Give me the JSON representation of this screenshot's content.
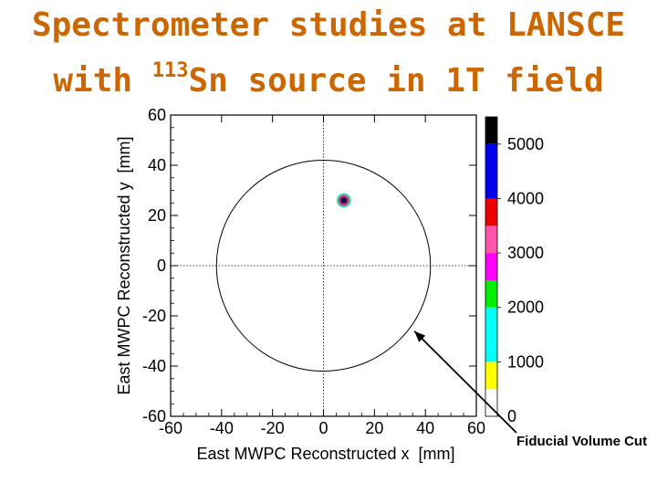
{
  "title": {
    "line1": "Spectrometer studies at LANSCE",
    "line2_prefix": "with ",
    "line2_superscript": "113",
    "line2_suffix": "Sn source in 1T field"
  },
  "chart_data": {
    "type": "heatmap",
    "title": "",
    "xlabel": "East MWPC Reconstructed x  [mm]",
    "ylabel": "East MWPC Reconstructed y  [mm]",
    "xlim": [
      -60,
      60
    ],
    "ylim": [
      -60,
      60
    ],
    "x_ticks": [
      -60,
      -40,
      -20,
      0,
      20,
      40,
      60
    ],
    "y_ticks": [
      -60,
      -40,
      -20,
      0,
      20,
      40,
      60
    ],
    "x_tick_labels": [
      "-60",
      "-40",
      "-20",
      "0",
      "20",
      "40",
      "60"
    ],
    "y_tick_labels": [
      "-60",
      "-40",
      "-20",
      "0",
      "20",
      "40",
      "60"
    ],
    "reference_lines": {
      "x": 0,
      "y": 0
    },
    "source_spot": {
      "x": 8,
      "y": 26,
      "peak_counts": 5000
    },
    "fiducial_circle": {
      "center_x": 0,
      "center_y": 0,
      "radius": 42
    },
    "colorbar": {
      "min": 0,
      "max": 5500,
      "tick_values": [
        0,
        1000,
        2000,
        3000,
        4000,
        5000
      ],
      "tick_labels": [
        "0",
        "1000",
        "2000",
        "3000",
        "4000",
        "5000"
      ],
      "segments": [
        {
          "from": 0,
          "to": 500,
          "color": "#ffffff"
        },
        {
          "from": 500,
          "to": 1000,
          "color": "#ffff00"
        },
        {
          "from": 1000,
          "to": 2000,
          "color": "#00ffff"
        },
        {
          "from": 2000,
          "to": 2500,
          "color": "#00ee00"
        },
        {
          "from": 2500,
          "to": 3000,
          "color": "#ff00ff"
        },
        {
          "from": 3000,
          "to": 3500,
          "color": "#ff55aa"
        },
        {
          "from": 3500,
          "to": 4000,
          "color": "#ee0000"
        },
        {
          "from": 4000,
          "to": 5000,
          "color": "#0000ee"
        },
        {
          "from": 5000,
          "to": 5500,
          "color": "#000000"
        }
      ]
    },
    "annotation": {
      "text": "Fiducial Volume Cut",
      "points_to": {
        "x": 35,
        "y": -25
      }
    }
  }
}
